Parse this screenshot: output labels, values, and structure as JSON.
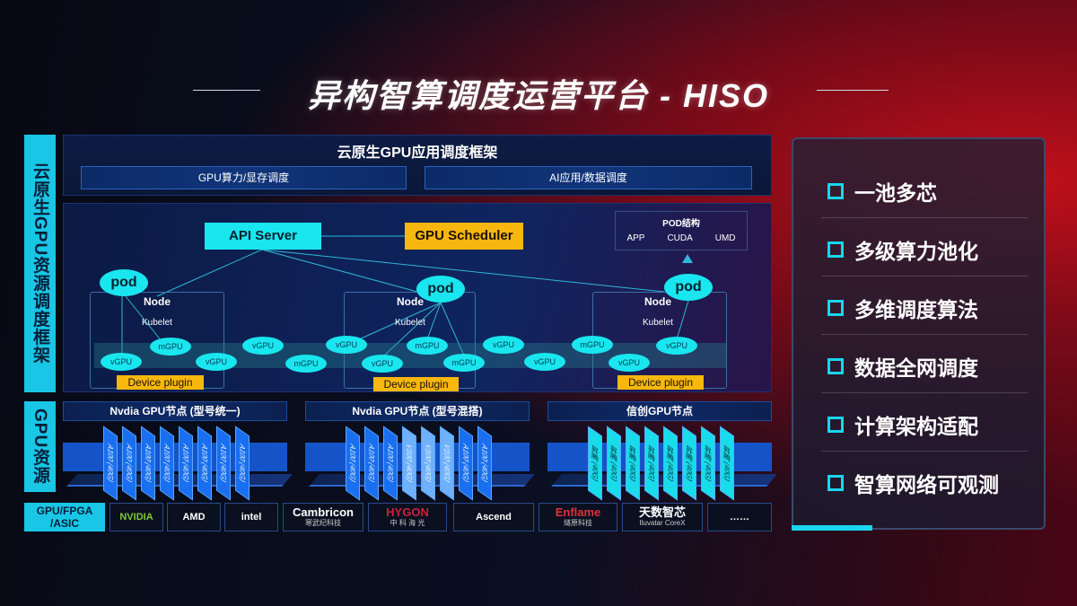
{
  "title": "异构智算调度运营平台 - HISO",
  "left_labels": {
    "framework": "云原生GPU资源调度框架",
    "resources": "GPU资源"
  },
  "framework": {
    "title": "云原生GPU应用调度框架",
    "sub": [
      "GPU算力/显存调度",
      "AI应用/数据调度"
    ]
  },
  "diagram": {
    "api_server": "API Server",
    "gpu_scheduler": "GPU Scheduler",
    "pod_struct": {
      "title": "POD结构",
      "items": [
        "APP",
        "CUDA",
        "UMD"
      ]
    },
    "pod": "pod",
    "node": "Node",
    "kubelet": "Kubelet",
    "device_plugin": "Device plugin",
    "gpus": [
      "vGPU",
      "mGPU",
      "vGPU",
      "vGPU",
      "mGPU",
      "vGPU",
      "mGPU",
      "vGPU",
      "mGPU",
      "vGPU",
      "vGPU",
      "mGPU",
      "vGPU",
      "vGPU"
    ]
  },
  "gpu_nodes": [
    {
      "title": "Nvdia GPU节点 (型号统一)",
      "cards": [
        "A100 (40G)",
        "A100 (40G)",
        "A100 (40G)",
        "A100 (40G)",
        "A100 (40G)",
        "A100 (40G)",
        "A100 (40G)",
        "A100 (40G)"
      ]
    },
    {
      "title": "Nvdia GPU节点 (型号混搭)",
      "cards": [
        "A100 (40G)",
        "A100 (40G)",
        "A100 (40G)",
        "V100 (40G)",
        "V100 (40G)",
        "V100 (40G)",
        "A100 (40G)",
        "A100 (40G)"
      ]
    },
    {
      "title": "信创GPU节点",
      "cards": [
        "昇腾 (40G)",
        "昇腾 (40G)",
        "昇腾 (40G)",
        "昇腾 (40G)",
        "昇腾 (40G)",
        "昇腾 (40G)",
        "昇腾 (40G)",
        "昇腾 (40G)"
      ]
    }
  ],
  "vendors": {
    "label": "GPU/FPGA /ASIC",
    "items": [
      {
        "name": "NVIDIA"
      },
      {
        "name": "AMD"
      },
      {
        "name": "intel"
      },
      {
        "name": "Cambricon",
        "sub": "寒武纪科技"
      },
      {
        "name": "HYGON",
        "sub": "中 科 海 光"
      },
      {
        "name": "Ascend"
      },
      {
        "name": "Enflame",
        "sub": "燧原科技"
      },
      {
        "name": "天数智芯",
        "sub": "Iluvatar CoreX"
      },
      {
        "name": "……"
      }
    ]
  },
  "features": [
    "一池多芯",
    "多级算力池化",
    "多维调度算法",
    "数据全网调度",
    "计算架构适配",
    "智算网络可观测"
  ],
  "colors": {
    "cyan": "#19e6ee",
    "orange": "#f7b70f",
    "blue": "#1a6ff0"
  }
}
